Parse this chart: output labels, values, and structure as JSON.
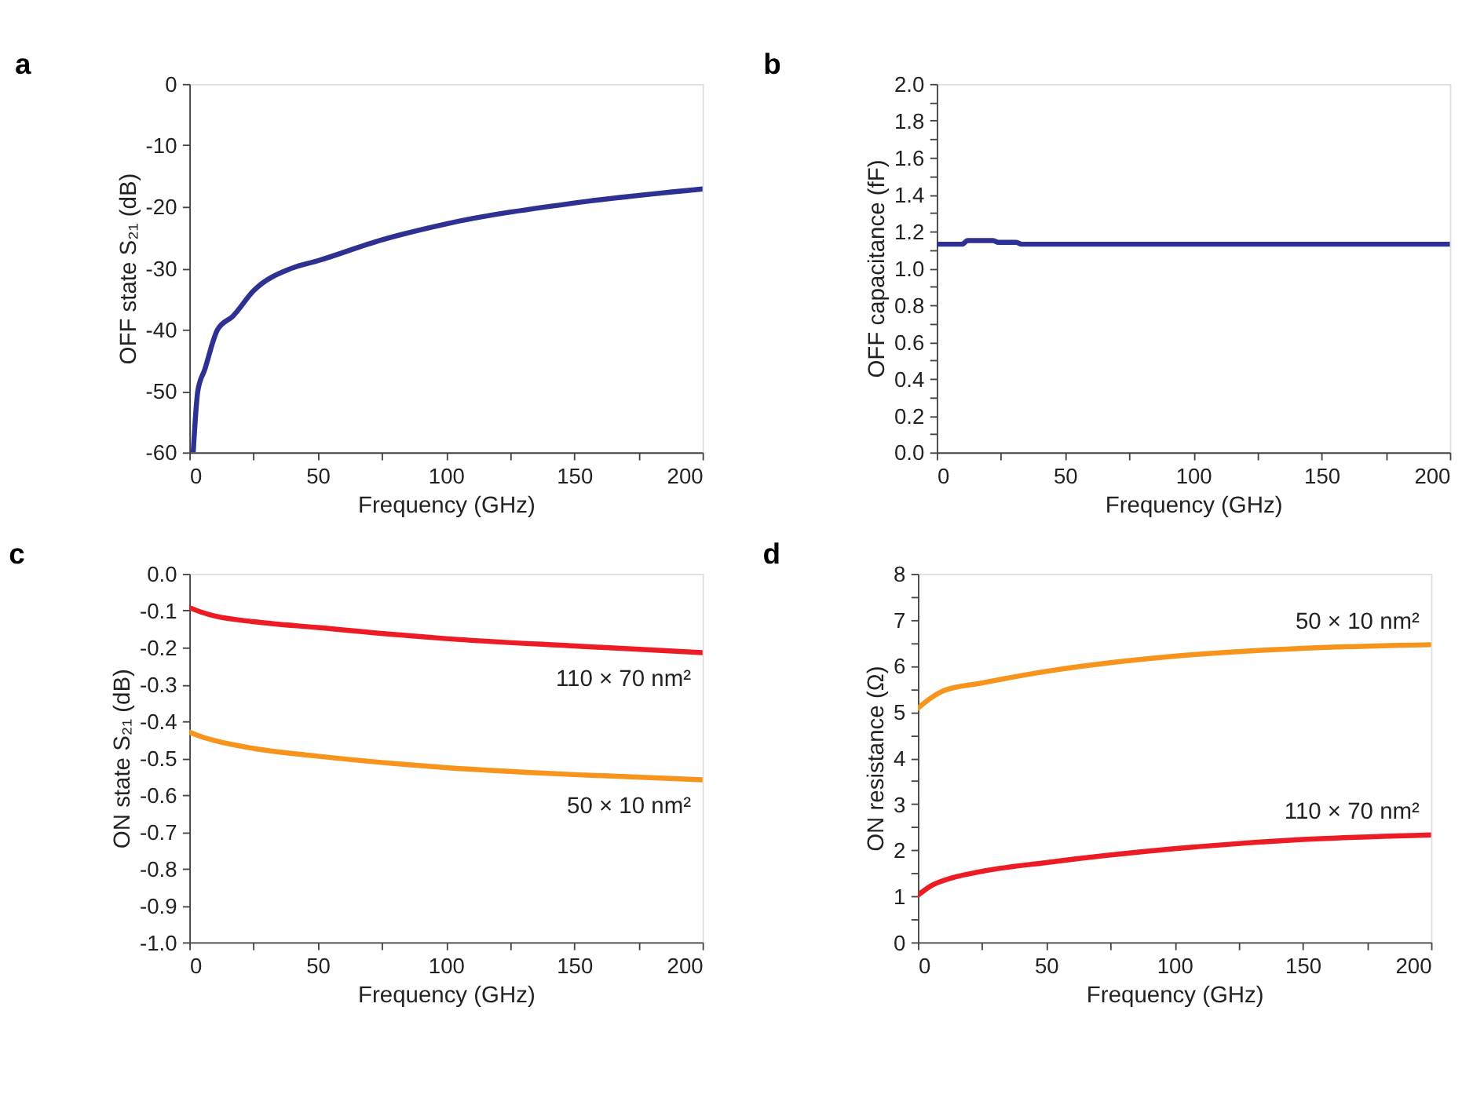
{
  "chart_data": [
    {
      "type": "line",
      "title": "a",
      "xlabel": "Frequency (GHz)",
      "ylabel": "OFF state S₂₁ (dB)",
      "xlim": [
        0,
        200
      ],
      "ylim": [
        -60,
        0
      ],
      "xticks": [
        0,
        {
          "value": 25,
          "label": null
        },
        50,
        {
          "value": 75,
          "label": null
        },
        100,
        {
          "value": 125,
          "label": null
        },
        150,
        {
          "value": 175,
          "label": null
        },
        200
      ],
      "yticks": [
        -60,
        -50,
        -40,
        -30,
        -20,
        -10,
        0
      ],
      "grid": false,
      "marker": "none",
      "line_style": "solid",
      "series": [
        {
          "color": "#2e3192",
          "x": [
            1.5,
            3.3,
            6,
            11,
            17,
            25,
            40,
            50,
            75,
            100,
            150,
            200
          ],
          "values": [
            -60,
            -50,
            -46.5,
            -40,
            -37.8,
            -33.7,
            -30,
            -28.8,
            -25.4,
            -22.8,
            -19.4,
            -17.1
          ]
        }
      ]
    },
    {
      "type": "line",
      "title": "b",
      "xlabel": "Frequency (GHz)",
      "ylabel": "OFF capacitance (fF)",
      "xlim": [
        0,
        200
      ],
      "ylim": [
        0,
        2
      ],
      "xticks": [
        0,
        {
          "value": 25,
          "label": null
        },
        50,
        {
          "value": 75,
          "label": null
        },
        100,
        {
          "value": 125,
          "label": null
        },
        150,
        {
          "value": 175,
          "label": null
        },
        200
      ],
      "yticks": [
        {
          "value": 0,
          "label": "0.0"
        },
        {
          "value": 0.1,
          "label": null
        },
        0.2,
        {
          "value": 0.3,
          "label": null
        },
        0.4,
        {
          "value": 0.5,
          "label": null
        },
        0.6,
        {
          "value": 0.7,
          "label": null
        },
        0.8,
        {
          "value": 0.9,
          "label": null
        },
        {
          "value": 1,
          "label": "1.0"
        },
        {
          "value": 1.1,
          "label": null
        },
        1.2,
        {
          "value": 1.3,
          "label": null
        },
        1.4,
        {
          "value": 1.5,
          "label": null
        },
        1.6,
        {
          "value": 1.7,
          "label": null
        },
        1.8,
        {
          "value": 1.9,
          "label": null
        },
        {
          "value": 2,
          "label": "2.0"
        }
      ],
      "grid": false,
      "marker": "none",
      "line_style": "solid",
      "series": [
        {
          "color": "#2e3192",
          "x": [
            0,
            10,
            12,
            22,
            24,
            31,
            33,
            100,
            200
          ],
          "values": [
            1.13,
            1.13,
            1.15,
            1.15,
            1.14,
            1.14,
            1.13,
            1.13,
            1.13
          ]
        }
      ]
    },
    {
      "type": "line",
      "title": "c",
      "xlabel": "Frequency (GHz)",
      "ylabel": "ON state S₂₁ (dB)",
      "xlim": [
        0,
        200
      ],
      "ylim": [
        -1,
        0
      ],
      "xticks": [
        0,
        {
          "value": 25,
          "label": null
        },
        50,
        {
          "value": 75,
          "label": null
        },
        100,
        {
          "value": 125,
          "label": null
        },
        150,
        {
          "value": 175,
          "label": null
        },
        200
      ],
      "yticks": [
        {
          "value": -1,
          "label": "-1.0"
        },
        -0.9,
        -0.8,
        -0.7,
        -0.6,
        -0.5,
        -0.4,
        -0.3,
        -0.2,
        -0.1,
        {
          "value": 0,
          "label": "0.0"
        }
      ],
      "grid": false,
      "marker": "none",
      "line_style": "solid",
      "series": [
        {
          "name": "110 × 70 nm²",
          "color": "#ed1c24",
          "x": [
            0,
            5,
            10,
            25,
            50,
            100,
            150,
            200
          ],
          "values": [
            -0.092,
            -0.105,
            -0.115,
            -0.13,
            -0.146,
            -0.176,
            -0.196,
            -0.214
          ]
        },
        {
          "name": "50 × 10 nm²",
          "color": "#f7941d",
          "x": [
            0,
            5,
            10,
            25,
            50,
            100,
            150,
            200
          ],
          "values": [
            -0.43,
            -0.443,
            -0.453,
            -0.474,
            -0.495,
            -0.526,
            -0.545,
            -0.559
          ]
        }
      ]
    },
    {
      "type": "line",
      "title": "d",
      "xlabel": "Frequency (GHz)",
      "ylabel": "ON resistance (Ω)",
      "xlim": [
        0,
        200
      ],
      "ylim": [
        0,
        8
      ],
      "xticks": [
        0,
        {
          "value": 25,
          "label": null
        },
        50,
        {
          "value": 75,
          "label": null
        },
        100,
        {
          "value": 125,
          "label": null
        },
        150,
        {
          "value": 175,
          "label": null
        },
        200
      ],
      "yticks": [
        0,
        {
          "value": 0.5,
          "label": null
        },
        1,
        {
          "value": 1.5,
          "label": null
        },
        2,
        {
          "value": 2.5,
          "label": null
        },
        3,
        {
          "value": 3.5,
          "label": null
        },
        4,
        {
          "value": 4.5,
          "label": null
        },
        5,
        {
          "value": 5.5,
          "label": null
        },
        6,
        {
          "value": 6.5,
          "label": null
        },
        7,
        {
          "value": 7.5,
          "label": null
        },
        8
      ],
      "grid": false,
      "marker": "none",
      "line_style": "solid",
      "series": [
        {
          "name": "50 × 10 nm²",
          "color": "#f7941d",
          "x": [
            0,
            5,
            10,
            25,
            50,
            100,
            150,
            200
          ],
          "values": [
            5.08,
            5.3,
            5.46,
            5.63,
            5.88,
            6.21,
            6.38,
            6.46
          ]
        },
        {
          "name": "110 × 70 nm²",
          "color": "#ed1c24",
          "x": [
            0,
            5,
            10,
            25,
            50,
            100,
            150,
            200
          ],
          "values": [
            1.02,
            1.22,
            1.34,
            1.54,
            1.73,
            2.03,
            2.23,
            2.33
          ]
        }
      ]
    }
  ]
}
